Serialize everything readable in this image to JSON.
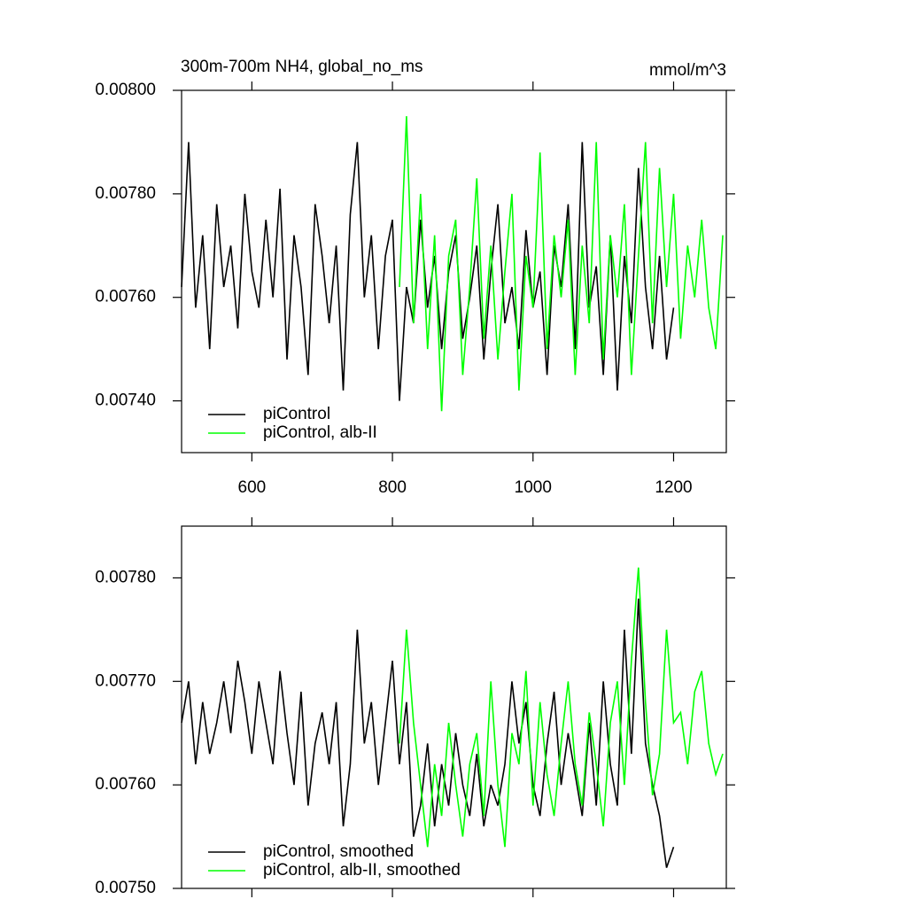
{
  "chart_data": [
    {
      "type": "line",
      "title": "300m-700m NH4, global_no_ms",
      "units": "mmol/m^3",
      "x": [
        500,
        510,
        520,
        530,
        540,
        550,
        560,
        570,
        580,
        590,
        600,
        610,
        620,
        630,
        640,
        650,
        660,
        670,
        680,
        690,
        700,
        710,
        720,
        730,
        740,
        750,
        760,
        770,
        780,
        790,
        800,
        810,
        820,
        830,
        840,
        850,
        860,
        870,
        880,
        890,
        900,
        910,
        920,
        930,
        940,
        950,
        960,
        970,
        980,
        990,
        1000,
        1010,
        1020,
        1030,
        1040,
        1050,
        1060,
        1070,
        1080,
        1090,
        1100,
        1110,
        1120,
        1130,
        1140,
        1150,
        1160,
        1170,
        1180,
        1190,
        1200,
        1210,
        1220,
        1230,
        1240,
        1250,
        1260,
        1270
      ],
      "series": [
        {
          "name": "piControl",
          "color": "#000000",
          "values": [
            0.00762,
            0.0079,
            0.00758,
            0.00772,
            0.0075,
            0.00778,
            0.00762,
            0.0077,
            0.00754,
            0.0078,
            0.00765,
            0.00758,
            0.00775,
            0.0076,
            0.00781,
            0.00748,
            0.00772,
            0.00762,
            0.00745,
            0.00778,
            0.00768,
            0.00755,
            0.0077,
            0.00742,
            0.00776,
            0.0079,
            0.0076,
            0.00772,
            0.0075,
            0.00768,
            0.00775,
            0.0074,
            0.00762,
            0.00755,
            0.00775,
            0.00758,
            0.00768,
            0.0075,
            0.00765,
            0.00772,
            0.00752,
            0.0076,
            0.0077,
            0.00748,
            0.00765,
            0.00778,
            0.00755,
            0.00762,
            0.0075,
            0.00773,
            0.00758,
            0.00765,
            0.00745,
            0.0077,
            0.00762,
            0.00778,
            0.0075,
            0.0079,
            0.00758,
            0.00766,
            0.00745,
            0.00772,
            0.00742,
            0.00768,
            0.00755,
            0.00785,
            0.00762,
            0.0075,
            0.00768,
            0.00748,
            0.00758,
            null,
            null,
            null,
            null,
            null,
            null,
            null
          ]
        },
        {
          "name": "piControl, alb-II",
          "color": "#00ff00",
          "values": [
            null,
            null,
            null,
            null,
            null,
            null,
            null,
            null,
            null,
            null,
            null,
            null,
            null,
            null,
            null,
            null,
            null,
            null,
            null,
            null,
            null,
            null,
            null,
            null,
            null,
            null,
            null,
            null,
            null,
            null,
            null,
            0.00762,
            0.00795,
            0.00755,
            0.0078,
            0.0075,
            0.00772,
            0.00738,
            0.00768,
            0.00775,
            0.00745,
            0.00762,
            0.00783,
            0.00752,
            0.0077,
            0.00748,
            0.00765,
            0.0078,
            0.00742,
            0.00768,
            0.00758,
            0.00788,
            0.0075,
            0.00772,
            0.0076,
            0.00775,
            0.00745,
            0.0077,
            0.00755,
            0.0079,
            0.00748,
            0.00772,
            0.0076,
            0.00778,
            0.00745,
            0.00768,
            0.0079,
            0.00755,
            0.00785,
            0.00762,
            0.0078,
            0.00752,
            0.0077,
            0.0076,
            0.00775,
            0.00758,
            0.0075,
            0.00772
          ]
        }
      ],
      "xlim": [
        500,
        1275
      ],
      "xticks": [
        600,
        800,
        1000,
        1200
      ],
      "xtick_labels": true,
      "ylim": [
        0.0073,
        0.008
      ],
      "yticks": [
        {
          "value": 0.0074,
          "label": "0.00740"
        },
        {
          "value": 0.0076,
          "label": "0.00760"
        },
        {
          "value": 0.0078,
          "label": "0.00780"
        },
        {
          "value": 0.008,
          "label": "0.00800"
        }
      ]
    },
    {
      "type": "line",
      "x": [
        500,
        510,
        520,
        530,
        540,
        550,
        560,
        570,
        580,
        590,
        600,
        610,
        620,
        630,
        640,
        650,
        660,
        670,
        680,
        690,
        700,
        710,
        720,
        730,
        740,
        750,
        760,
        770,
        780,
        790,
        800,
        810,
        820,
        830,
        840,
        850,
        860,
        870,
        880,
        890,
        900,
        910,
        920,
        930,
        940,
        950,
        960,
        970,
        980,
        990,
        1000,
        1010,
        1020,
        1030,
        1040,
        1050,
        1060,
        1070,
        1080,
        1090,
        1100,
        1110,
        1120,
        1130,
        1140,
        1150,
        1160,
        1170,
        1180,
        1190,
        1200,
        1210,
        1220,
        1230,
        1240,
        1250,
        1260,
        1270
      ],
      "series": [
        {
          "name": "piControl, smoothed",
          "color": "#000000",
          "values": [
            0.00766,
            0.0077,
            0.00762,
            0.00768,
            0.00763,
            0.00766,
            0.0077,
            0.00765,
            0.00772,
            0.00768,
            0.00763,
            0.0077,
            0.00766,
            0.00762,
            0.00771,
            0.00765,
            0.0076,
            0.00769,
            0.00758,
            0.00764,
            0.00767,
            0.00762,
            0.00768,
            0.00756,
            0.00762,
            0.00775,
            0.00764,
            0.00768,
            0.0076,
            0.00766,
            0.00772,
            0.00762,
            0.00768,
            0.00755,
            0.00758,
            0.00764,
            0.00756,
            0.00762,
            0.00758,
            0.00765,
            0.0076,
            0.00757,
            0.00763,
            0.00756,
            0.0076,
            0.00758,
            0.00762,
            0.0077,
            0.00764,
            0.00768,
            0.0076,
            0.00757,
            0.00764,
            0.00769,
            0.0076,
            0.00765,
            0.00761,
            0.00757,
            0.00766,
            0.00758,
            0.0077,
            0.00762,
            0.00758,
            0.00775,
            0.00763,
            0.00778,
            0.00764,
            0.0076,
            0.00757,
            0.00752,
            0.00754,
            null,
            null,
            null,
            null,
            null,
            null,
            null
          ]
        },
        {
          "name": "piControl, alb-II, smoothed",
          "color": "#00ff00",
          "values": [
            null,
            null,
            null,
            null,
            null,
            null,
            null,
            null,
            null,
            null,
            null,
            null,
            null,
            null,
            null,
            null,
            null,
            null,
            null,
            null,
            null,
            null,
            null,
            null,
            null,
            null,
            null,
            null,
            null,
            null,
            null,
            0.00764,
            0.00775,
            0.00766,
            0.0076,
            0.00754,
            0.00762,
            0.00757,
            0.00766,
            0.0076,
            0.00755,
            0.00762,
            0.00765,
            0.00757,
            0.0077,
            0.0076,
            0.00754,
            0.00765,
            0.00762,
            0.00771,
            0.00758,
            0.00768,
            0.00761,
            0.00757,
            0.00764,
            0.0077,
            0.00762,
            0.00758,
            0.00767,
            0.00762,
            0.00756,
            0.00766,
            0.0077,
            0.0076,
            0.00772,
            0.00781,
            0.00768,
            0.00759,
            0.00763,
            0.00775,
            0.00766,
            0.00767,
            0.00762,
            0.00769,
            0.00771,
            0.00764,
            0.00761,
            0.00763
          ]
        }
      ],
      "xlim": [
        500,
        1275
      ],
      "xticks": [
        600,
        800,
        1000,
        1200
      ],
      "xtick_labels": false,
      "ylim": [
        0.0075,
        0.00785
      ],
      "yticks": [
        {
          "value": 0.0075,
          "label": "0.00750"
        },
        {
          "value": 0.0076,
          "label": "0.00760"
        },
        {
          "value": 0.0077,
          "label": "0.00770"
        },
        {
          "value": 0.0078,
          "label": "0.00780"
        }
      ]
    }
  ]
}
